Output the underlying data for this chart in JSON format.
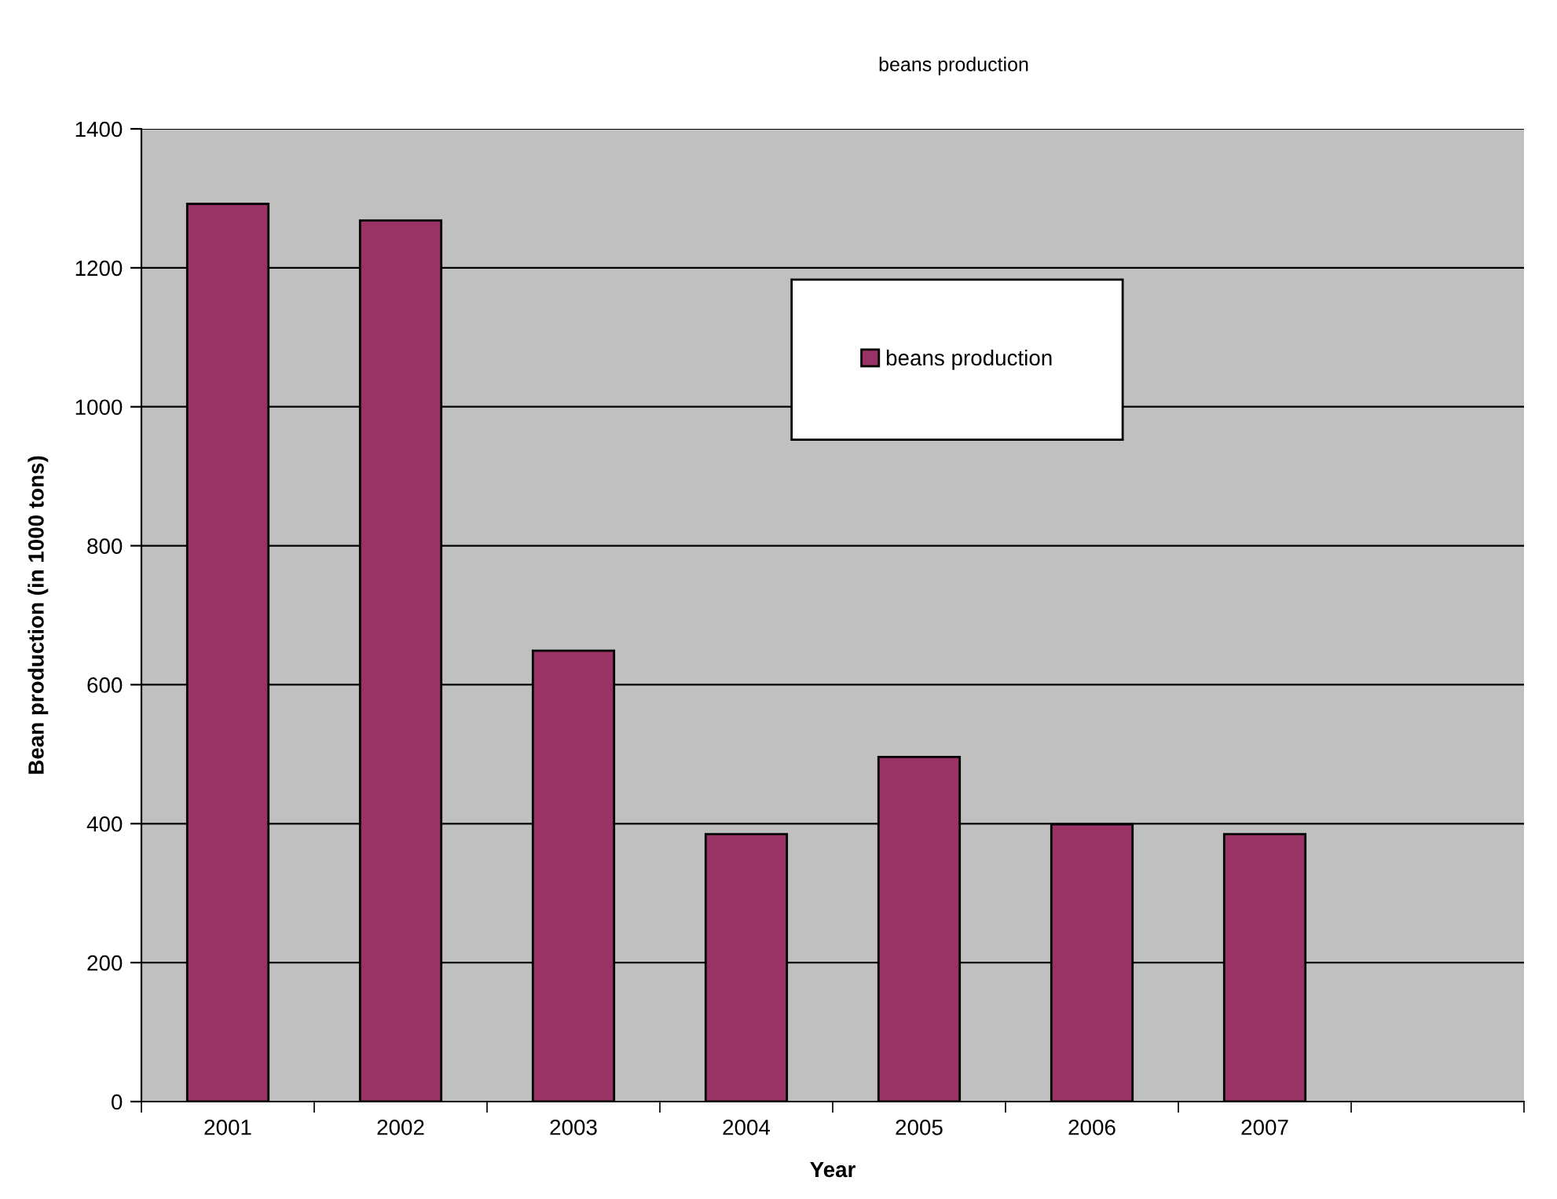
{
  "chart_data": {
    "type": "bar",
    "title": "beans production",
    "xlabel": "Year",
    "ylabel": "Bean production (in 1000 tons)",
    "categories": [
      "2001",
      "2002",
      "2003",
      "2004",
      "2005",
      "2006",
      "2007",
      null
    ],
    "series": [
      {
        "name": "beans production",
        "color": "#993366",
        "values": [
          1292,
          1268,
          649,
          385,
          496,
          399,
          385,
          null
        ]
      }
    ],
    "ylim": [
      0,
      1400
    ],
    "yticks": [
      0,
      200,
      400,
      600,
      800,
      1000,
      1200,
      1400
    ],
    "grid": "y",
    "legend": "top"
  }
}
